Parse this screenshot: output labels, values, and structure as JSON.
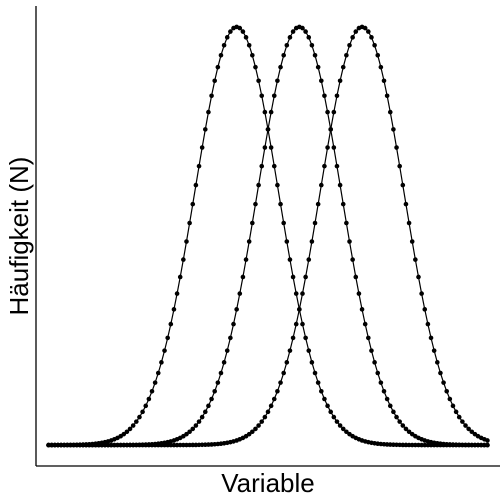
{
  "chart_data": {
    "type": "line",
    "title": "",
    "xlabel": "Variable",
    "ylabel": "Häufigkeit (N)",
    "xlim": [
      -4.8,
      6.3
    ],
    "ylim": [
      -0.05,
      1.05
    ],
    "grid": false,
    "legend": "none",
    "markers": true,
    "x": {
      "start": -4.5,
      "end": 6.0,
      "step": 0.075
    },
    "series": [
      {
        "distribution": "normal",
        "mean": 0.0,
        "sd": 1.0,
        "peak": 1.0
      },
      {
        "distribution": "normal",
        "mean": 1.5,
        "sd": 1.0,
        "peak": 1.0
      },
      {
        "distribution": "normal",
        "mean": 3.0,
        "sd": 1.0,
        "peak": 1.0
      }
    ],
    "colors": {
      "line": "#000000",
      "marker": "#000000",
      "axis": "#000000"
    }
  }
}
